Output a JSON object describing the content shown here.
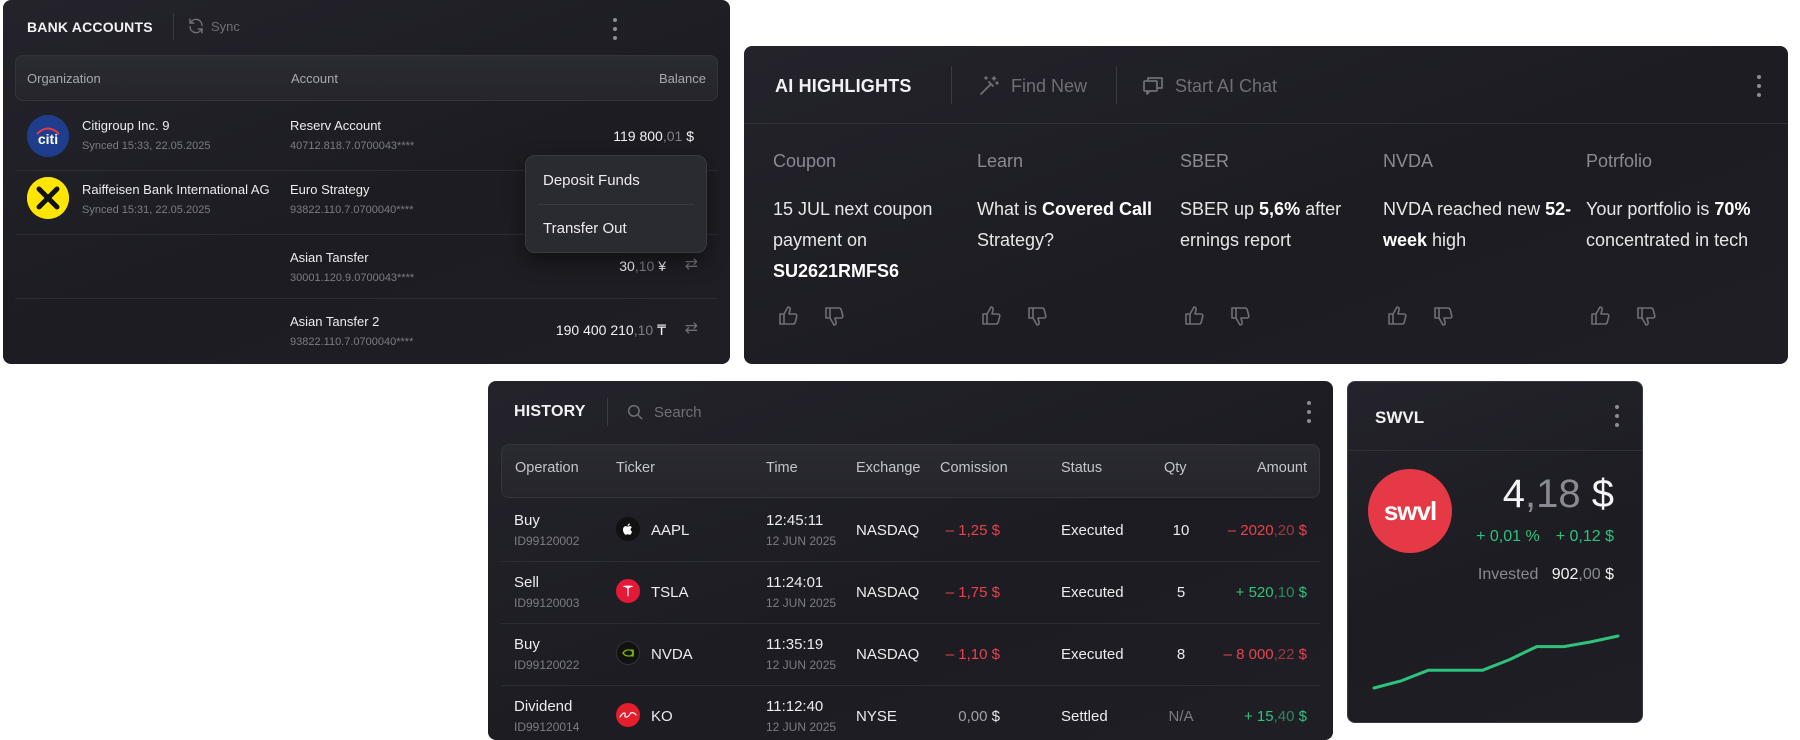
{
  "bank": {
    "title": "BANK ACCOUNTS",
    "sync_label": "Sync",
    "columns": {
      "organization": "Organization",
      "account": "Account",
      "balance": "Balance"
    },
    "rows": [
      {
        "org": "Citigroup Inc. 9",
        "synced": "Synced 15:33, 22.05.2025",
        "account": "Reserv Account",
        "number": "40712.818.7.0700043****",
        "bal_int": "119 800",
        "bal_dec": ",01",
        "currency": "$",
        "logo": "citi-logo"
      },
      {
        "org": "Raiffeisen Bank International AG",
        "synced": "Synced 15:31, 22.05.2025",
        "account": "Euro Strategy",
        "number": "93822.110.7.0700040****",
        "bal_int": "",
        "bal_dec": "",
        "currency": "",
        "logo": "raiffeisen-logo"
      },
      {
        "org": "",
        "synced": "",
        "account": "Asian Tansfer",
        "number": "30001.120.9.0700043****",
        "bal_int": "30",
        "bal_dec": ",10",
        "currency": "¥"
      },
      {
        "org": "",
        "synced": "",
        "account": "Asian Tansfer 2",
        "number": "93822.110.7.0700040****",
        "bal_int": "190 400 210",
        "bal_dec": ",10",
        "currency": "₸"
      }
    ],
    "menu": {
      "deposit": "Deposit Funds",
      "transfer": "Transfer Out"
    }
  },
  "ai": {
    "title": "AI HIGHLIGHTS",
    "find_new": "Find New",
    "start_chat": "Start AI Chat",
    "cards": [
      {
        "category": "Coupon",
        "parts": [
          "15 JUL next coupon payment on ",
          "SU2621RMFS6",
          ""
        ]
      },
      {
        "category": "Learn",
        "parts": [
          "What is ",
          "Covered Call",
          " Strategy?"
        ]
      },
      {
        "category": "SBER",
        "parts": [
          "SBER up ",
          "5,6%",
          " after ernings report"
        ]
      },
      {
        "category": "NVDA",
        "parts": [
          "NVDA reached new ",
          "52-week",
          " high"
        ]
      },
      {
        "category": "Potrfolio",
        "parts": [
          "Your portfolio is ",
          "70%",
          " concentrated in tech"
        ]
      }
    ]
  },
  "history": {
    "title": "HISTORY",
    "search_placeholder": "Search",
    "columns": {
      "operation": "Operation",
      "ticker": "Ticker",
      "time": "Time",
      "exchange": "Exchange",
      "commission": "Comission",
      "status": "Status",
      "qty": "Qty",
      "amount": "Amount"
    },
    "rows": [
      {
        "op": "Buy",
        "id": "ID99120002",
        "ticker": "AAPL",
        "time": "12:45:11",
        "date": "12 JUN 2025",
        "exchange": "NASDAQ",
        "com_int": "– 1,25",
        "com_cur": " $",
        "status": "Executed",
        "qty": "10",
        "amt_int": "– 2020",
        "amt_dec": ",20",
        "amt_cur": " $"
      },
      {
        "op": "Sell",
        "id": "ID99120003",
        "ticker": "TSLA",
        "time": "11:24:01",
        "date": "12 JUN 2025",
        "exchange": "NASDAQ",
        "com_int": "– 1,75",
        "com_cur": " $",
        "status": "Executed",
        "qty": "5",
        "amt_int": "+ 520",
        "amt_dec": ",10",
        "amt_cur": " $"
      },
      {
        "op": "Buy",
        "id": "ID99120022",
        "ticker": "NVDA",
        "time": "11:35:19",
        "date": "12 JUN 2025",
        "exchange": "NASDAQ",
        "com_int": "– 1,10",
        "com_cur": " $",
        "status": "Executed",
        "qty": "8",
        "amt_int": "– 8 000",
        "amt_dec": ",22",
        "amt_cur": " $"
      },
      {
        "op": "Dividend",
        "id": "ID99120014",
        "ticker": "KO",
        "time": "11:12:40",
        "date": "12 JUN 2025",
        "exchange": "NYSE",
        "com_int": "0,00",
        "com_cur": " $",
        "status": "Settled",
        "qty": "N/A",
        "amt_int": "+ 15",
        "amt_dec": ",40",
        "amt_cur": " $"
      }
    ]
  },
  "swvl": {
    "title": "SWVL",
    "logo_text": "swvl",
    "price_int": "4",
    "price_dec": ",18",
    "price_cur": " $",
    "change_pct": "+ 0,01 %",
    "change_abs": "+ 0,12 $",
    "invested_label": "Invested",
    "invested_int": "902",
    "invested_dec": ",00",
    "invested_cur": " $",
    "spark_values": [
      0,
      6,
      15,
      15,
      15,
      24,
      35,
      35,
      39,
      44
    ],
    "spark_color": "#2fc27d"
  },
  "colors": {
    "positive": "#2fc27d",
    "negative": "#e8424e",
    "panel": "#1f1e25"
  }
}
